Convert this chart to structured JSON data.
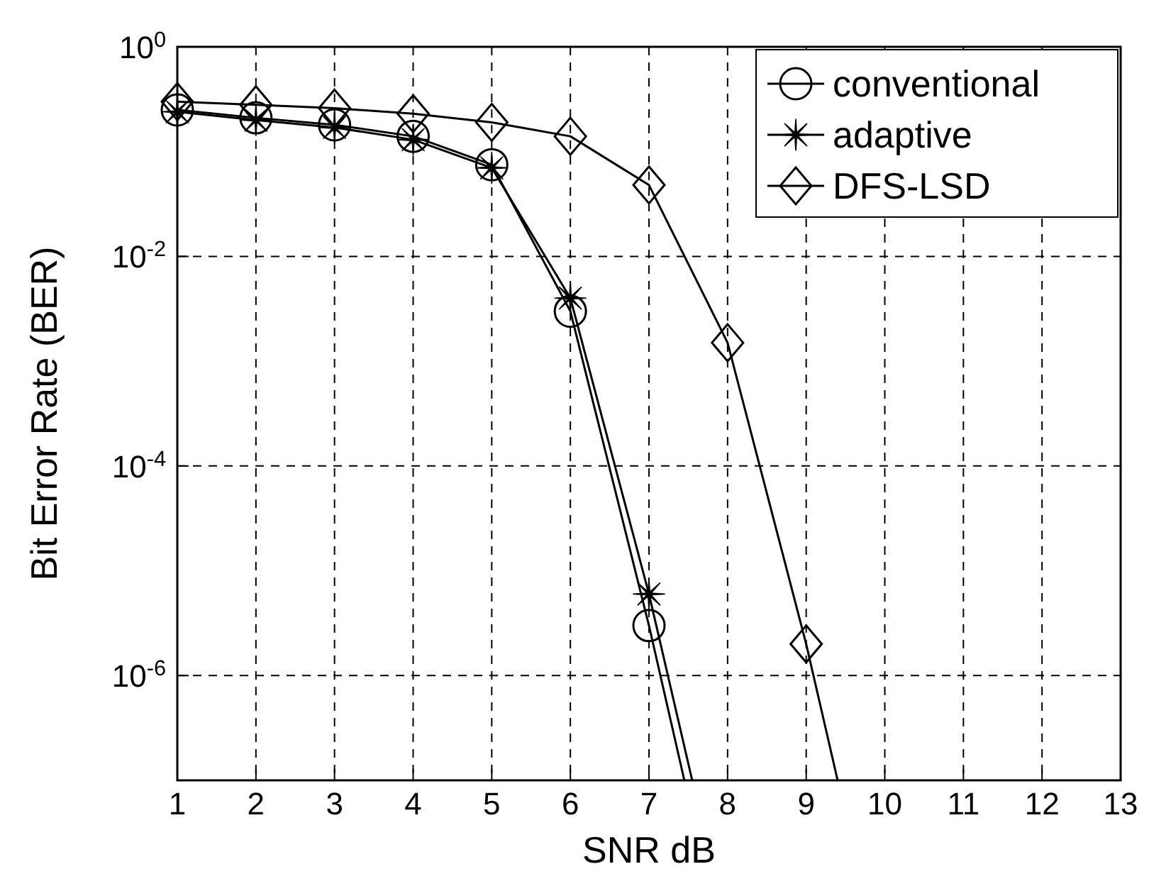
{
  "chart_data": {
    "type": "line",
    "xlabel": "SNR dB",
    "ylabel": "Bit Error Rate (BER)",
    "log": "y",
    "grid": true,
    "legend": "top right",
    "line_style": "solid",
    "xlim": [
      1,
      13
    ],
    "xticks": [
      1,
      2,
      3,
      4,
      5,
      6,
      7,
      8,
      9,
      10,
      11,
      12,
      13
    ],
    "ylim": [
      1e-07,
      1
    ],
    "yticks": [
      {
        "value": 1,
        "label": "10$^{0}$"
      },
      {
        "value": 0.01,
        "label": "10$^{-2}$"
      },
      {
        "value": 0.0001,
        "label": "10$^{-4}$"
      },
      {
        "value": 1e-06,
        "label": "10$^{-6}$"
      }
    ],
    "series": [
      {
        "name": "conventional",
        "color": "#000000",
        "marker": "circle",
        "x": [
          1,
          2,
          3,
          4,
          5,
          6,
          7,
          7.45
        ],
        "values": [
          0.25,
          0.21,
          0.18,
          0.14,
          0.075,
          0.003,
          3e-06,
          1e-07
        ]
      },
      {
        "name": "adaptive",
        "color": "#000000",
        "marker": "cross",
        "x": [
          1,
          2,
          3,
          4,
          5,
          6,
          7,
          7.55
        ],
        "values": [
          0.24,
          0.2,
          0.17,
          0.13,
          0.07,
          0.004,
          6e-06,
          1e-07
        ]
      },
      {
        "name": "DFS-LSD",
        "color": "#000000",
        "marker": "diamond",
        "x": [
          1,
          2,
          3,
          4,
          5,
          6,
          7,
          8,
          9,
          9.4
        ],
        "values": [
          0.3,
          0.28,
          0.26,
          0.23,
          0.19,
          0.14,
          0.048,
          0.0015,
          2e-06,
          1e-07
        ]
      }
    ]
  }
}
